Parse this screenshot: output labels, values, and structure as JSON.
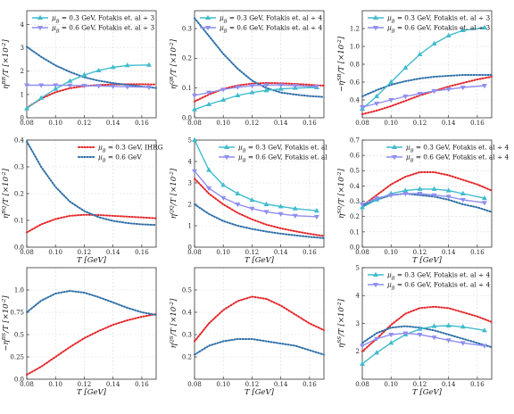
{
  "colors": {
    "red": "#e3262a",
    "blue": "#2f6fa8",
    "cyan": "#3fbccc",
    "violet": "#8f8ef0",
    "grid": "#d9d9d9"
  },
  "chart_data": [
    {
      "type": "line",
      "panel": "BB",
      "ylabel": "η^{BB}/T [×10^{-2}]",
      "xlabel": "",
      "xlim": [
        0.08,
        0.17
      ],
      "ylim": [
        0,
        4.6
      ],
      "xticks": [
        "0.08",
        "0.10",
        "0.12",
        "0.14",
        "0.16"
      ],
      "yticks": [
        "0",
        "1",
        "2",
        "3",
        "4"
      ],
      "legend_pos": "top-left",
      "x": [
        0.08,
        0.09,
        0.1,
        0.11,
        0.12,
        0.13,
        0.14,
        0.15,
        0.16,
        0.17
      ],
      "series": [
        {
          "name": "",
          "color": "red",
          "values": [
            0.43,
            0.82,
            1.1,
            1.27,
            1.36,
            1.41,
            1.43,
            1.44,
            1.44,
            1.43
          ]
        },
        {
          "name": "",
          "color": "blue",
          "values": [
            3.05,
            2.62,
            2.25,
            1.97,
            1.74,
            1.59,
            1.49,
            1.41,
            1.34,
            1.28
          ]
        },
        {
          "name": "μB = 0.3 GeV, Fotakis et. al ÷ 3",
          "color": "cyan",
          "marker": "triangle",
          "x": [
            0.08,
            0.09,
            0.1,
            0.11,
            0.12,
            0.13,
            0.14,
            0.15,
            0.165
          ],
          "values": [
            0.4,
            0.85,
            1.24,
            1.58,
            1.84,
            2.03,
            2.17,
            2.25,
            2.27
          ]
        },
        {
          "name": "μB = 0.6 GeV, Fotakis et. al ÷ 3",
          "color": "violet",
          "marker": "tri-down",
          "x": [
            0.08,
            0.09,
            0.1,
            0.11,
            0.12,
            0.13,
            0.14,
            0.15,
            0.165
          ],
          "values": [
            1.4,
            1.4,
            1.4,
            1.39,
            1.38,
            1.37,
            1.35,
            1.33,
            1.31
          ]
        }
      ]
    },
    {
      "type": "line",
      "panel": "QB",
      "ylabel": "η^{QB}/T [×10^{-2}]",
      "xlabel": "",
      "xlim": [
        0.08,
        0.17
      ],
      "ylim": [
        0,
        0.36
      ],
      "xticks": [
        "0.08",
        "0.10",
        "0.12",
        "0.14",
        "0.16"
      ],
      "yticks": [
        "0.0",
        "0.1",
        "0.2",
        "0.3"
      ],
      "legend_pos": "top-left",
      "x": [
        0.08,
        0.09,
        0.1,
        0.11,
        0.12,
        0.13,
        0.14,
        0.15,
        0.16,
        0.17
      ],
      "series": [
        {
          "name": "",
          "color": "red",
          "values": [
            0.055,
            0.078,
            0.097,
            0.109,
            0.115,
            0.117,
            0.116,
            0.114,
            0.111,
            0.108
          ]
        },
        {
          "name": "",
          "color": "blue",
          "values": [
            0.335,
            0.275,
            0.215,
            0.165,
            0.125,
            0.1,
            0.085,
            0.078,
            0.073,
            0.07
          ]
        },
        {
          "name": "μB = 0.3 GeV, Fotakis et. al ÷ 4",
          "color": "cyan",
          "marker": "triangle",
          "x": [
            0.08,
            0.09,
            0.1,
            0.11,
            0.12,
            0.13,
            0.14,
            0.15,
            0.165
          ],
          "values": [
            0.028,
            0.045,
            0.06,
            0.075,
            0.085,
            0.092,
            0.097,
            0.1,
            0.102
          ]
        },
        {
          "name": "μB = 0.6 GeV, Fotakis et. al ÷ 4",
          "color": "violet",
          "marker": "tri-down",
          "x": [
            0.08,
            0.09,
            0.1,
            0.11,
            0.12,
            0.13,
            0.14,
            0.15,
            0.165
          ],
          "values": [
            0.075,
            0.085,
            0.095,
            0.103,
            0.108,
            0.11,
            0.11,
            0.108,
            0.105
          ]
        }
      ]
    },
    {
      "type": "line",
      "panel": "SB",
      "ylabel": "−η^{SB}/T [×10^{-2}]",
      "xlabel": "",
      "xlim": [
        0.08,
        0.17
      ],
      "ylim": [
        0.2,
        1.4
      ],
      "xticks": [
        "0.08",
        "0.10",
        "0.12",
        "0.14",
        "0.16"
      ],
      "yticks": [
        "0.4",
        "0.6",
        "0.8",
        "1.0",
        "1.2"
      ],
      "legend_pos": "top-left",
      "x": [
        0.08,
        0.09,
        0.1,
        0.11,
        0.12,
        0.13,
        0.14,
        0.15,
        0.16,
        0.17
      ],
      "series": [
        {
          "name": "",
          "color": "red",
          "values": [
            0.24,
            0.28,
            0.33,
            0.39,
            0.45,
            0.5,
            0.55,
            0.59,
            0.63,
            0.66
          ]
        },
        {
          "name": "",
          "color": "blue",
          "values": [
            0.44,
            0.51,
            0.57,
            0.61,
            0.64,
            0.66,
            0.67,
            0.68,
            0.68,
            0.68
          ]
        },
        {
          "name": "μB = 0.3 GeV, Fotakis et. al ÷ 3",
          "color": "cyan",
          "marker": "triangle",
          "x": [
            0.08,
            0.09,
            0.1,
            0.11,
            0.12,
            0.13,
            0.14,
            0.15,
            0.165
          ],
          "values": [
            0.3,
            0.44,
            0.6,
            0.76,
            0.91,
            1.03,
            1.12,
            1.18,
            1.21
          ]
        },
        {
          "name": "μB = 0.6 GeV, Fotakis et. al ÷ 3",
          "color": "violet",
          "marker": "tri-down",
          "x": [
            0.08,
            0.09,
            0.1,
            0.11,
            0.12,
            0.13,
            0.14,
            0.15,
            0.165
          ],
          "values": [
            0.32,
            0.36,
            0.4,
            0.44,
            0.47,
            0.5,
            0.52,
            0.54,
            0.56
          ]
        }
      ]
    },
    {
      "type": "line",
      "panel": "BQ",
      "ylabel": "η^{BQ}/T [×10^{-2}]",
      "xlabel": "T [GeV]",
      "xlim": [
        0.08,
        0.17
      ],
      "ylim": [
        0,
        0.4
      ],
      "xticks": [
        "0.08",
        "0.10",
        "0.12",
        "0.14",
        "0.16"
      ],
      "yticks": [
        "0.0",
        "0.1",
        "0.2",
        "0.3",
        "0.4"
      ],
      "legend_pos": "top-right",
      "x": [
        0.08,
        0.09,
        0.1,
        0.11,
        0.12,
        0.13,
        0.14,
        0.15,
        0.16,
        0.17
      ],
      "series": [
        {
          "name": "μB = 0.3 GeV, IHRG",
          "color": "red",
          "values": [
            0.055,
            0.085,
            0.105,
            0.117,
            0.121,
            0.12,
            0.117,
            0.114,
            0.111,
            0.108
          ]
        },
        {
          "name": "μB = 0.6 GeV",
          "color": "blue",
          "values": [
            0.395,
            0.3,
            0.225,
            0.17,
            0.135,
            0.112,
            0.098,
            0.09,
            0.085,
            0.083
          ]
        }
      ]
    },
    {
      "type": "line",
      "panel": "QQ",
      "ylabel": "η^{QQ}/T [×10^{-2}]",
      "xlabel": "T [GeV]",
      "xlim": [
        0.08,
        0.17
      ],
      "ylim": [
        0,
        5
      ],
      "xticks": [
        "0.08",
        "0.10",
        "0.12",
        "0.14",
        "0.16"
      ],
      "yticks": [
        "0",
        "1",
        "2",
        "3",
        "4",
        "5"
      ],
      "legend_pos": "top-right",
      "x": [
        0.08,
        0.09,
        0.1,
        0.11,
        0.12,
        0.13,
        0.14,
        0.15,
        0.16,
        0.17
      ],
      "series": [
        {
          "name": "",
          "color": "red",
          "values": [
            3.2,
            2.5,
            2.0,
            1.6,
            1.3,
            1.05,
            0.88,
            0.74,
            0.62,
            0.52
          ]
        },
        {
          "name": "",
          "color": "blue",
          "values": [
            2.0,
            1.55,
            1.22,
            1.0,
            0.85,
            0.73,
            0.63,
            0.55,
            0.48,
            0.42
          ]
        },
        {
          "name": "μB = 0.3 GeV, Fotakis et. al",
          "color": "cyan",
          "marker": "triangle",
          "x": [
            0.08,
            0.09,
            0.1,
            0.11,
            0.12,
            0.13,
            0.14,
            0.15,
            0.165
          ],
          "values": [
            5.0,
            3.6,
            2.9,
            2.5,
            2.2,
            2.0,
            1.9,
            1.8,
            1.7
          ]
        },
        {
          "name": "μB = 0.6 GeV, Fotakis et. al",
          "color": "violet",
          "marker": "tri-down",
          "x": [
            0.08,
            0.09,
            0.1,
            0.11,
            0.12,
            0.13,
            0.14,
            0.15,
            0.165
          ],
          "values": [
            3.55,
            2.75,
            2.3,
            2.0,
            1.8,
            1.65,
            1.55,
            1.47,
            1.42
          ]
        }
      ]
    },
    {
      "type": "line",
      "panel": "SQ",
      "ylabel": "η^{SQ}/T [×10^{-2}]",
      "xlabel": "T [GeV]",
      "xlim": [
        0.08,
        0.17
      ],
      "ylim": [
        0,
        0.7
      ],
      "xticks": [
        "0.08",
        "0.10",
        "0.12",
        "0.14",
        "0.16"
      ],
      "yticks": [
        "0.0",
        "0.1",
        "0.2",
        "0.3",
        "0.4",
        "0.5",
        "0.6",
        "0.7"
      ],
      "legend_pos": "top-right",
      "x": [
        0.08,
        0.09,
        0.1,
        0.11,
        0.12,
        0.13,
        0.14,
        0.15,
        0.16,
        0.17
      ],
      "series": [
        {
          "name": "",
          "color": "red",
          "values": [
            0.27,
            0.34,
            0.41,
            0.46,
            0.49,
            0.49,
            0.47,
            0.44,
            0.41,
            0.37
          ]
        },
        {
          "name": "",
          "color": "blue",
          "values": [
            0.27,
            0.31,
            0.34,
            0.35,
            0.34,
            0.33,
            0.31,
            0.28,
            0.26,
            0.23
          ]
        },
        {
          "name": "μB = 0.3 GeV, Fotakis et. al ÷ 4",
          "color": "cyan",
          "marker": "triangle",
          "x": [
            0.08,
            0.09,
            0.1,
            0.11,
            0.12,
            0.13,
            0.14,
            0.15,
            0.165
          ],
          "values": [
            0.26,
            0.31,
            0.35,
            0.37,
            0.38,
            0.38,
            0.37,
            0.35,
            0.32
          ]
        },
        {
          "name": "μB = 0.6 GeV, Fotakis et. al ÷ 4",
          "color": "violet",
          "marker": "tri-down",
          "x": [
            0.08,
            0.09,
            0.1,
            0.11,
            0.12,
            0.13,
            0.14,
            0.15,
            0.165
          ],
          "values": [
            0.28,
            0.32,
            0.34,
            0.35,
            0.35,
            0.34,
            0.33,
            0.31,
            0.29
          ]
        }
      ]
    },
    {
      "type": "line",
      "panel": "BS",
      "ylabel": "−η^{BS}/T [×10^{-2}]",
      "xlabel": "T [GeV]",
      "xlim": [
        0.08,
        0.17
      ],
      "ylim": [
        0,
        1.25
      ],
      "xticks": [
        "0.08",
        "0.10",
        "0.12",
        "0.14",
        "0.16"
      ],
      "yticks": [
        "0.0",
        "0.25",
        "0.5",
        "0.75",
        "1.0"
      ],
      "legend_pos": "",
      "x": [
        0.08,
        0.09,
        0.1,
        0.11,
        0.12,
        0.13,
        0.14,
        0.15,
        0.16,
        0.17
      ],
      "series": [
        {
          "name": "",
          "color": "red",
          "values": [
            0.05,
            0.14,
            0.25,
            0.36,
            0.46,
            0.54,
            0.61,
            0.66,
            0.7,
            0.73
          ]
        },
        {
          "name": "",
          "color": "blue",
          "values": [
            0.75,
            0.88,
            0.96,
            0.99,
            0.97,
            0.92,
            0.86,
            0.8,
            0.75,
            0.72
          ]
        }
      ]
    },
    {
      "type": "line",
      "panel": "QS",
      "ylabel": "η^{QS}/T [×10^{-2}]",
      "xlabel": "T [GeV]",
      "xlim": [
        0.08,
        0.17
      ],
      "ylim": [
        0.1,
        0.6
      ],
      "xticks": [
        "0.08",
        "0.10",
        "0.12",
        "0.14",
        "0.16"
      ],
      "yticks": [
        "0.2",
        "0.3",
        "0.4",
        "0.5"
      ],
      "legend_pos": "",
      "x": [
        0.08,
        0.09,
        0.1,
        0.11,
        0.12,
        0.13,
        0.14,
        0.15,
        0.16,
        0.17
      ],
      "series": [
        {
          "name": "",
          "color": "red",
          "values": [
            0.27,
            0.35,
            0.41,
            0.45,
            0.47,
            0.46,
            0.43,
            0.39,
            0.35,
            0.32
          ]
        },
        {
          "name": "",
          "color": "blue",
          "values": [
            0.21,
            0.25,
            0.27,
            0.28,
            0.28,
            0.27,
            0.26,
            0.25,
            0.23,
            0.21
          ]
        }
      ]
    },
    {
      "type": "line",
      "panel": "SS",
      "ylabel": "η^{SS}/T [×10^{-2}]",
      "xlabel": "T [GeV]",
      "xlim": [
        0.08,
        0.17
      ],
      "ylim": [
        1,
        5
      ],
      "xticks": [
        "0.08",
        "0.10",
        "0.12",
        "0.14",
        "0.16"
      ],
      "yticks": [
        "2",
        "3",
        "4",
        "5"
      ],
      "legend_pos": "top-left",
      "x": [
        0.08,
        0.09,
        0.1,
        0.11,
        0.12,
        0.13,
        0.14,
        0.15,
        0.16,
        0.17
      ],
      "series": [
        {
          "name": "",
          "color": "red",
          "values": [
            2.0,
            2.45,
            2.95,
            3.35,
            3.55,
            3.6,
            3.55,
            3.4,
            3.25,
            3.05
          ]
        },
        {
          "name": "",
          "color": "blue",
          "values": [
            2.3,
            2.65,
            2.85,
            2.9,
            2.85,
            2.75,
            2.6,
            2.45,
            2.3,
            2.15
          ]
        },
        {
          "name": "μB = 0.3 GeV, Fotakis et. al ÷ 4",
          "color": "cyan",
          "marker": "triangle",
          "x": [
            0.08,
            0.09,
            0.1,
            0.11,
            0.12,
            0.13,
            0.14,
            0.15,
            0.165
          ],
          "values": [
            1.55,
            1.95,
            2.3,
            2.6,
            2.8,
            2.9,
            2.92,
            2.88,
            2.75
          ]
        },
        {
          "name": "μB = 0.6 GeV, Fotakis et. al ÷ 4",
          "color": "violet",
          "marker": "tri-down",
          "x": [
            0.08,
            0.09,
            0.1,
            0.11,
            0.12,
            0.13,
            0.14,
            0.15,
            0.165
          ],
          "values": [
            2.2,
            2.45,
            2.6,
            2.65,
            2.6,
            2.5,
            2.4,
            2.3,
            2.2
          ]
        }
      ]
    }
  ]
}
